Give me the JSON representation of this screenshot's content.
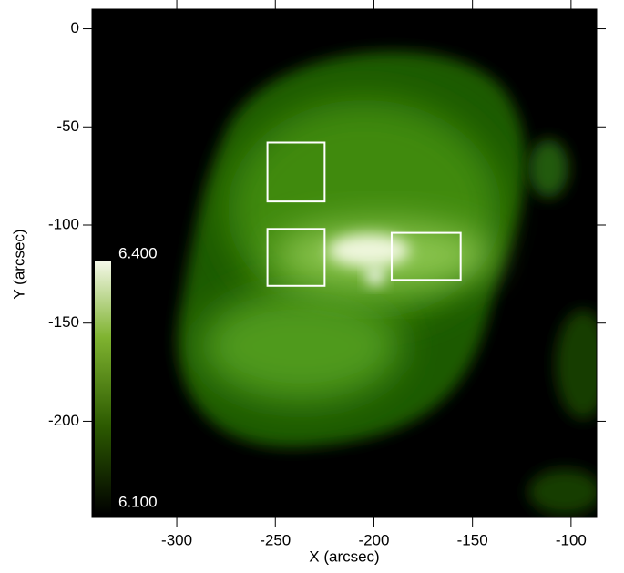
{
  "chart_data": {
    "type": "image",
    "x_label": "X (arcsec)",
    "y_label": "Y (arcsec)",
    "xlim": [
      -343,
      -87
    ],
    "ylim": [
      -249,
      10
    ],
    "xticks": [
      -300,
      -250,
      -200,
      -150,
      -100
    ],
    "yticks": [
      0,
      -50,
      -100,
      -150,
      -200
    ],
    "colorbar": {
      "lim": [
        6.1,
        6.4
      ],
      "ticks": [
        {
          "value": 6.4,
          "label": "6.400"
        },
        {
          "value": 6.1,
          "label": "6.100"
        }
      ]
    },
    "regions": [
      {
        "x": [
          -254,
          -225
        ],
        "y": [
          -88,
          -58
        ]
      },
      {
        "x": [
          -254,
          -225
        ],
        "y": [
          -131,
          -102
        ]
      },
      {
        "x": [
          -191,
          -156
        ],
        "y": [
          -128,
          -104
        ]
      }
    ],
    "region_color": "#ffffff"
  }
}
